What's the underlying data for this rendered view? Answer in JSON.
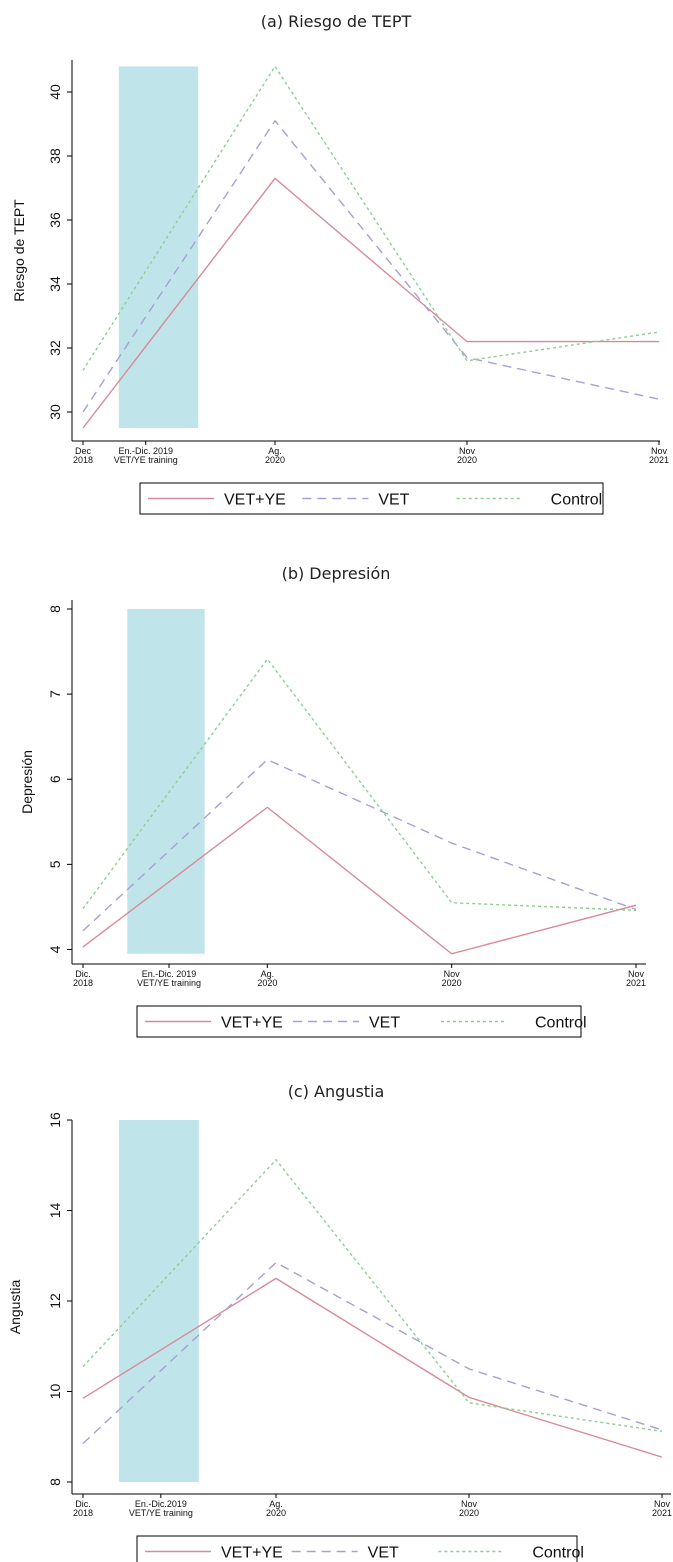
{
  "styles": {
    "colors": {
      "VET+YE": "#d88a99",
      "VET": "#a89ed8",
      "Control": "#8bd08f",
      "band": "#bfe5ea"
    },
    "dash": {
      "VET+YE": "",
      "VET": "9 6",
      "Control": "3 3"
    }
  },
  "chart_data": [
    {
      "type": "line",
      "title": "(a) Riesgo de TEPT",
      "ylabel": "Riesgo de TEPT",
      "ylim": [
        29.5,
        41
      ],
      "yticks": [
        30,
        32,
        34,
        36,
        38,
        40
      ],
      "x": [
        0,
        3,
        6,
        9
      ],
      "xticks": [
        {
          "x": 0,
          "lines": [
            "Dec",
            "2018"
          ]
        },
        {
          "x": 0.98,
          "lines": [
            "En.-Dic. 2019",
            "VET/YE training"
          ]
        },
        {
          "x": 3,
          "lines": [
            "Ag.",
            "2020"
          ]
        },
        {
          "x": 6,
          "lines": [
            "Nov",
            "2020"
          ]
        },
        {
          "x": 9,
          "lines": [
            "Nov",
            "2021"
          ]
        }
      ],
      "band": {
        "x": [
          0.56,
          1.8
        ],
        "y": [
          29.5,
          40.8
        ]
      },
      "series": [
        {
          "name": "VET+YE",
          "values": [
            29.5,
            37.3,
            32.2,
            32.2
          ]
        },
        {
          "name": "VET",
          "values": [
            30.0,
            39.1,
            31.7,
            30.4
          ]
        },
        {
          "name": "Control",
          "values": [
            31.3,
            40.8,
            31.6,
            32.5
          ]
        }
      ],
      "legend": [
        "VET+YE",
        "VET",
        "Control"
      ]
    },
    {
      "type": "line",
      "title": "(b) Depresión",
      "ylabel": "Depresión",
      "ylim": [
        3.9,
        8
      ],
      "yticks": [
        4,
        5,
        6,
        7,
        8
      ],
      "x": [
        0,
        3,
        6,
        9
      ],
      "xticks": [
        {
          "x": 0,
          "lines": [
            "Dic.",
            "2018"
          ]
        },
        {
          "x": 1.4,
          "lines": [
            "En.-Dic. 2019",
            "VET/YE training"
          ]
        },
        {
          "x": 3,
          "lines": [
            "Ag.",
            "2020"
          ]
        },
        {
          "x": 6,
          "lines": [
            "Nov",
            "2020"
          ]
        },
        {
          "x": 9,
          "lines": [
            "Nov",
            "2021"
          ]
        }
      ],
      "band": {
        "x": [
          0.72,
          1.98
        ],
        "y": [
          3.95,
          8
        ]
      },
      "series": [
        {
          "name": "VET+YE",
          "values": [
            4.03,
            5.67,
            3.95,
            4.52
          ]
        },
        {
          "name": "VET",
          "values": [
            4.22,
            6.23,
            5.25,
            4.47
          ]
        },
        {
          "name": "Control",
          "values": [
            4.48,
            7.41,
            4.55,
            4.46
          ]
        }
      ],
      "legend": [
        "VET+YE",
        "VET",
        "Control"
      ]
    },
    {
      "type": "line",
      "title": "(c) Angustia",
      "ylabel": "Angustia",
      "ylim": [
        8,
        16
      ],
      "yticks": [
        8,
        10,
        12,
        14,
        16
      ],
      "x": [
        0,
        3,
        6,
        9
      ],
      "xticks": [
        {
          "x": 0,
          "lines": [
            "Dic.",
            "2018"
          ]
        },
        {
          "x": 1.21,
          "lines": [
            "En.-Dic.2019",
            "VET/YE training"
          ]
        },
        {
          "x": 3,
          "lines": [
            "Ag.",
            "2020"
          ]
        },
        {
          "x": 6,
          "lines": [
            "Nov",
            "2020"
          ]
        },
        {
          "x": 9,
          "lines": [
            "Nov",
            "2021"
          ]
        }
      ],
      "band": {
        "x": [
          0.56,
          1.8
        ],
        "y": [
          8,
          16
        ]
      },
      "series": [
        {
          "name": "VET+YE",
          "values": [
            9.85,
            12.5,
            9.87,
            8.55
          ]
        },
        {
          "name": "VET",
          "values": [
            8.85,
            12.85,
            10.5,
            9.15
          ]
        },
        {
          "name": "Control",
          "values": [
            10.55,
            15.12,
            9.75,
            9.12
          ]
        }
      ],
      "legend": [
        "VET+YE",
        "VET",
        "Control"
      ]
    }
  ]
}
